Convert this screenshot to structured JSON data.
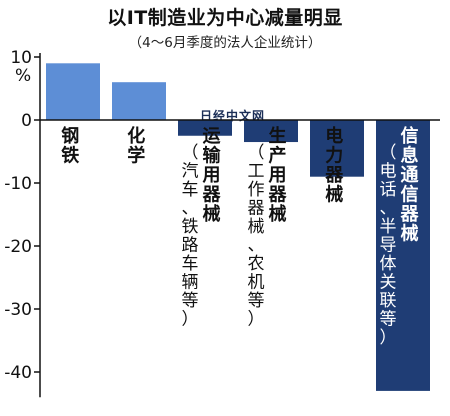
{
  "chart_data": {
    "type": "bar",
    "title": "以IT制造业为中心减量明显",
    "subtitle": "（4～6月季度的法人企业统计）",
    "unit": "%",
    "ylim": [
      -44,
      10
    ],
    "yticks": [
      10,
      0,
      -10,
      -20,
      -30,
      -40
    ],
    "ytick_labels": [
      "10",
      "0",
      "-10",
      "-20",
      "-30",
      "-40"
    ],
    "grid": false,
    "categories": [
      {
        "name": "钢铁",
        "note": ""
      },
      {
        "name": "化学",
        "note": ""
      },
      {
        "name": "运输用器械",
        "note": "（汽车、铁路车辆等）"
      },
      {
        "name": "生产用器械",
        "note": "（工作器械、农机等）"
      },
      {
        "name": "电力器械",
        "note": ""
      },
      {
        "name": "信息通信器械",
        "note": "（电话、半导体关联等）"
      }
    ],
    "values": [
      9,
      6,
      -2.5,
      -3.5,
      -9,
      -43
    ],
    "colors": {
      "positive": "#5d8ed6",
      "negative": "#1f3d75",
      "axis": "#111111"
    }
  },
  "watermark": "日经中文网"
}
